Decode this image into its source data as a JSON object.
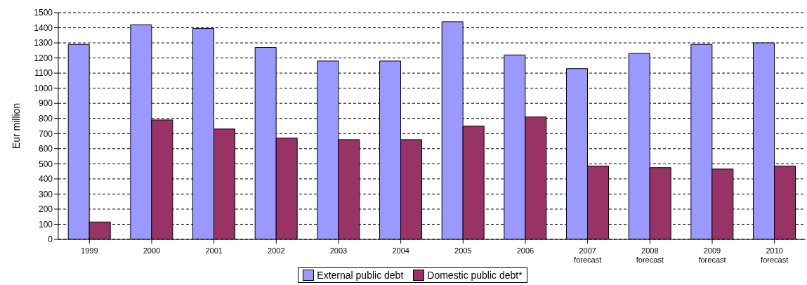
{
  "chart_data": {
    "type": "bar",
    "ylabel": "Eur million",
    "categories": [
      "1999",
      "2000",
      "2001",
      "2002",
      "2003",
      "2004",
      "2005",
      "2006",
      "2007\nforecast",
      "2008\nforecast",
      "2009\nforecast",
      "2010\nforecast"
    ],
    "series": [
      {
        "name": "External public debt",
        "color": "#9999ff",
        "values": [
          1290,
          1420,
          1395,
          1270,
          1180,
          1180,
          1440,
          1220,
          1130,
          1230,
          1290,
          1300
        ]
      },
      {
        "name": "Domestic public debt*",
        "color": "#993366",
        "values": [
          115,
          790,
          730,
          670,
          660,
          660,
          750,
          810,
          485,
          475,
          465,
          485
        ]
      }
    ],
    "ylim": [
      0,
      1500
    ],
    "yticks": [
      0,
      100,
      200,
      300,
      400,
      500,
      600,
      700,
      800,
      900,
      1000,
      1100,
      1200,
      1300,
      1400,
      1500
    ],
    "grid": "y",
    "legend": "bottom"
  }
}
